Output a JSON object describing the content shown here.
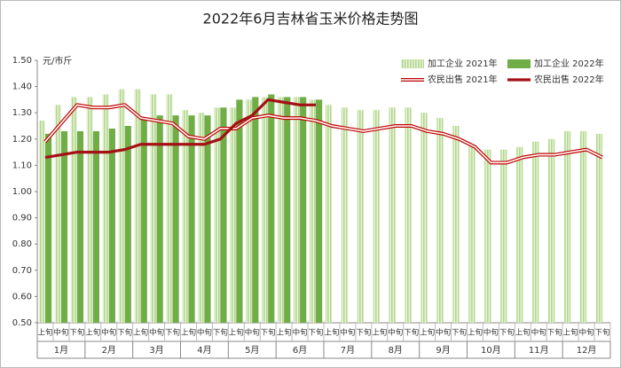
{
  "chart_data": {
    "type": "bar_line",
    "title": "2022年6月吉林省玉米价格走势图",
    "y_label": "元/市斤",
    "categories": [
      "上旬",
      "中旬",
      "下旬",
      "上旬",
      "中旬",
      "下旬",
      "上旬",
      "中旬",
      "下旬",
      "上旬",
      "中旬",
      "下旬",
      "上旬",
      "中旬",
      "下旬",
      "上旬",
      "中旬",
      "下旬",
      "上旬",
      "中旬",
      "下旬",
      "上旬",
      "中旬",
      "下旬",
      "上旬",
      "中旬",
      "下旬",
      "上旬",
      "中旬",
      "下旬",
      "上旬",
      "中旬",
      "下旬",
      "上旬",
      "中旬",
      "下旬"
    ],
    "groups": [
      "1月",
      "2月",
      "3月",
      "4月",
      "5月",
      "6月",
      "7月",
      "8月",
      "9月",
      "10月",
      "11月",
      "12月"
    ],
    "ylim": [
      0.5,
      1.5
    ],
    "yticks": [
      {
        "value": 0.5,
        "label": "0.50"
      },
      {
        "value": 0.6,
        "label": "0.60"
      },
      {
        "value": 0.7,
        "label": "0.70"
      },
      {
        "value": 0.8,
        "label": "0.80"
      },
      {
        "value": 0.9,
        "label": "0.90"
      },
      {
        "value": 1.0,
        "label": "1.00"
      },
      {
        "value": 1.1,
        "label": "1.10"
      },
      {
        "value": 1.2,
        "label": "1.20"
      },
      {
        "value": 1.3,
        "label": "1.30"
      },
      {
        "value": 1.4,
        "label": "1.40"
      },
      {
        "value": 1.5,
        "label": "1.50"
      }
    ],
    "legend": "top-right",
    "series": [
      {
        "name": "加工企业 2021年",
        "kind": "bar",
        "color": "#b5d88f",
        "hatch": true,
        "values": [
          1.27,
          1.33,
          1.36,
          1.36,
          1.37,
          1.39,
          1.39,
          1.37,
          1.37,
          1.31,
          1.3,
          1.32,
          1.32,
          1.35,
          1.36,
          1.36,
          1.36,
          1.35,
          1.33,
          1.32,
          1.31,
          1.31,
          1.32,
          1.32,
          1.3,
          1.28,
          1.25,
          1.18,
          1.16,
          1.16,
          1.17,
          1.19,
          1.2,
          1.23,
          1.23,
          1.22
        ]
      },
      {
        "name": "加工企业 2022年",
        "kind": "bar",
        "color": "#70ad47",
        "values": [
          1.22,
          1.23,
          1.23,
          1.23,
          1.24,
          1.25,
          1.28,
          1.29,
          1.29,
          1.29,
          1.29,
          1.32,
          1.35,
          1.36,
          1.37,
          1.36,
          1.36,
          1.35,
          null,
          null,
          null,
          null,
          null,
          null,
          null,
          null,
          null,
          null,
          null,
          null,
          null,
          null,
          null,
          null,
          null,
          null
        ]
      },
      {
        "name": "农民出售 2021年",
        "kind": "line",
        "color": "#c00000",
        "double": true,
        "values": [
          1.19,
          1.26,
          1.33,
          1.32,
          1.32,
          1.33,
          1.28,
          1.27,
          1.26,
          1.21,
          1.2,
          1.24,
          1.24,
          1.28,
          1.29,
          1.28,
          1.28,
          1.27,
          1.25,
          1.24,
          1.23,
          1.24,
          1.25,
          1.25,
          1.23,
          1.22,
          1.2,
          1.17,
          1.11,
          1.11,
          1.13,
          1.14,
          1.14,
          1.15,
          1.16,
          1.13
        ]
      },
      {
        "name": "农民出售 2022年",
        "kind": "line",
        "color": "#a50f15",
        "values": [
          1.13,
          1.14,
          1.15,
          1.15,
          1.15,
          1.16,
          1.18,
          1.18,
          1.18,
          1.18,
          1.18,
          1.2,
          1.26,
          1.29,
          1.35,
          1.34,
          1.33,
          1.33,
          null,
          null,
          null,
          null,
          null,
          null,
          null,
          null,
          null,
          null,
          null,
          null,
          null,
          null,
          null,
          null,
          null,
          null
        ]
      }
    ]
  }
}
